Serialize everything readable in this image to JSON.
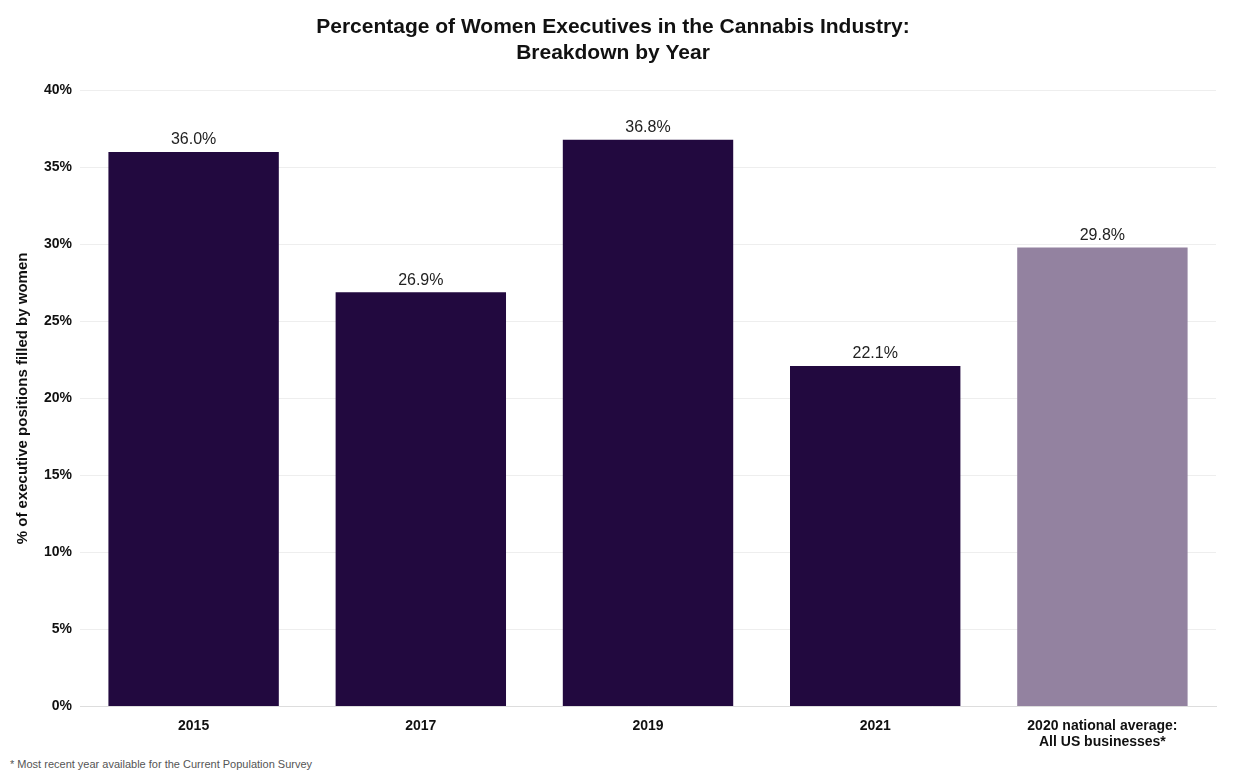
{
  "chart_data": {
    "type": "bar",
    "title": [
      "Percentage of Women Executives in the Cannabis Industry:",
      "Breakdown by Year"
    ],
    "y_label": "% of executive positions filled by women",
    "categories": [
      "2015",
      "2017",
      "2019",
      "2021",
      [
        "2020 national average:",
        "All US businesses*"
      ]
    ],
    "values": [
      36.0,
      26.9,
      36.8,
      22.1,
      29.8
    ],
    "value_labels": [
      "36.0%",
      "26.9%",
      "36.8%",
      "22.1%",
      "29.8%"
    ],
    "colors": [
      "#22093f",
      "#22093f",
      "#22093f",
      "#22093f",
      "#9382a0"
    ],
    "ylim": [
      0,
      40
    ],
    "yticks": [
      {
        "value": 0,
        "label": "0%"
      },
      {
        "value": 5,
        "label": "5%"
      },
      {
        "value": 10,
        "label": "10%"
      },
      {
        "value": 15,
        "label": "15%"
      },
      {
        "value": 20,
        "label": "20%"
      },
      {
        "value": 25,
        "label": "25%"
      },
      {
        "value": 30,
        "label": "30%"
      },
      {
        "value": 35,
        "label": "35%"
      },
      {
        "value": 40,
        "label": "40%"
      }
    ],
    "grid": true,
    "data_labels": true,
    "annotations": [
      "* Most recent year available for the Current Population Survey"
    ]
  }
}
